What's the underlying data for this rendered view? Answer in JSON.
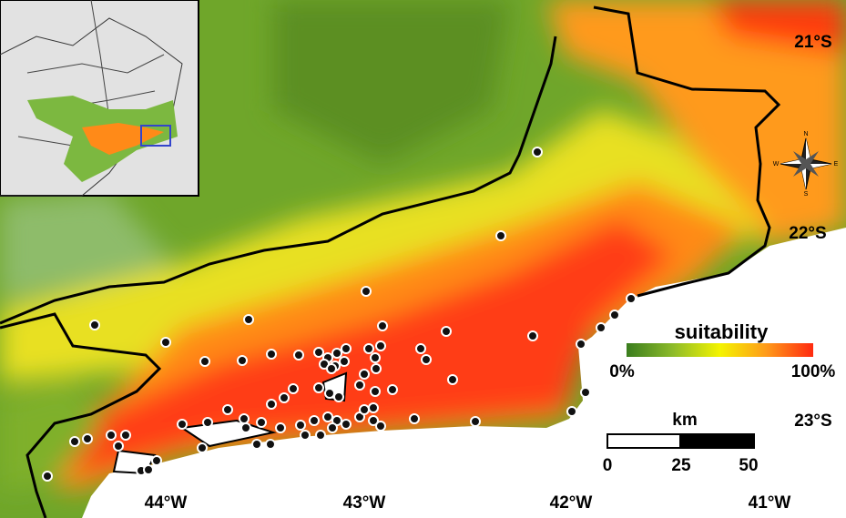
{
  "map": {
    "latitude_labels": [
      "21°S",
      "22°S",
      "23°S"
    ],
    "longitude_labels": [
      "44°W",
      "43°W",
      "42°W",
      "41°W"
    ],
    "legend": {
      "title": "suitability",
      "min_label": "0%",
      "max_label": "100%"
    },
    "scale_bar": {
      "unit": "km",
      "labels": [
        "0",
        "25",
        "50"
      ]
    },
    "compass": {
      "north": "N",
      "east": "E",
      "south": "S",
      "west": "W"
    }
  }
}
